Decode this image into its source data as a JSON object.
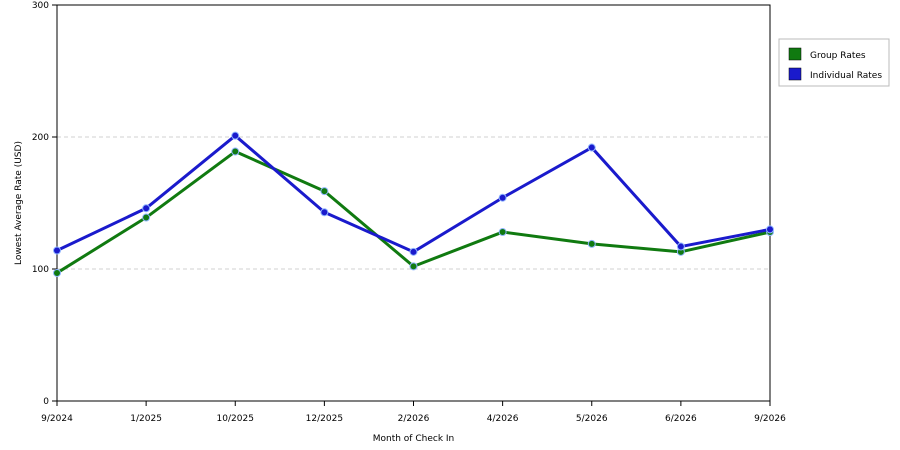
{
  "chart_data": {
    "type": "line",
    "title": "",
    "xlabel": "Month of Check In",
    "ylabel": "Lowest Average Rate (USD)",
    "categories": [
      "9/2024",
      "1/2025",
      "10/2025",
      "12/2025",
      "2/2026",
      "4/2026",
      "5/2026",
      "6/2026",
      "9/2026"
    ],
    "ylim": [
      0,
      300
    ],
    "yticks": [
      "0",
      "100",
      "200",
      "300"
    ],
    "grid": true,
    "legend_position": "top-right",
    "series": [
      {
        "name": "Group Rates",
        "color": "#107a10",
        "values": [
          97,
          139,
          189,
          159,
          102,
          128,
          119,
          113,
          128
        ]
      },
      {
        "name": "Individual Rates",
        "color": "#1a1acc",
        "values": [
          114,
          146,
          201,
          143,
          113,
          154,
          192,
          117,
          130
        ]
      }
    ]
  }
}
